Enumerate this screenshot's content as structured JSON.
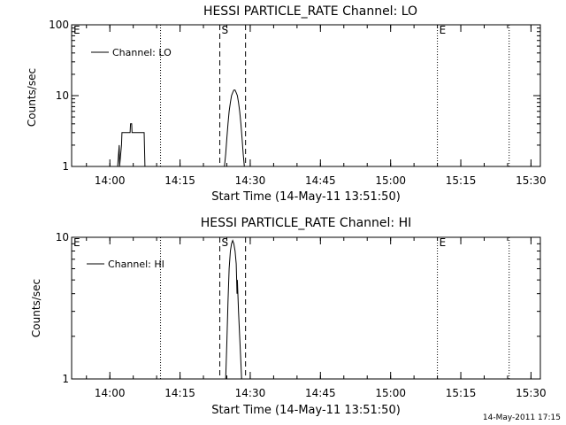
{
  "timestamp": "14-May-2011 17:15",
  "chart_data": [
    {
      "type": "line",
      "title": "HESSI PARTICLE_RATE Channel: LO",
      "xlabel": "Start Time (14-May-11 13:51:50)",
      "ylabel": "Counts/sec",
      "y_scale": "log",
      "ylim": [
        1,
        100
      ],
      "yticks": [
        1,
        10,
        100
      ],
      "ytick_labels": [
        "1",
        "10",
        "100"
      ],
      "xlim": [
        "13:51:50",
        "15:32:00"
      ],
      "xticks": [
        "14:00",
        "14:15",
        "14:30",
        "14:45",
        "15:00",
        "15:15",
        "15:30"
      ],
      "legend": {
        "label": "Channel: LO",
        "position": "top-left"
      },
      "markers": [
        {
          "label": "E",
          "time": "13:51:50",
          "style": "none"
        },
        {
          "label": "",
          "time": "14:10:50",
          "style": "dotted"
        },
        {
          "label": "S",
          "time": "14:23:30",
          "style": "dashed"
        },
        {
          "label": "",
          "time": "14:29:00",
          "style": "dashed"
        },
        {
          "label": "E",
          "time": "15:10:00",
          "style": "dotted"
        },
        {
          "label": "",
          "time": "15:25:20",
          "style": "dotted"
        }
      ],
      "series": [
        {
          "name": "Channel: LO",
          "segments": [
            {
              "x": [
                "14:01:40",
                "14:02:00",
                "14:02:05",
                "14:02:30",
                "14:02:35",
                "14:03:00",
                "14:03:10",
                "14:04:20",
                "14:04:25",
                "14:04:40",
                "14:04:45",
                "14:05:00",
                "14:05:05",
                "14:07:20",
                "14:07:30"
              ],
              "y": [
                1,
                2,
                1,
                2,
                3,
                3,
                3,
                3,
                4,
                4,
                3,
                3,
                3,
                3,
                1
              ]
            },
            {
              "x": [
                "14:24:30",
                "14:24:45",
                "14:25:00",
                "14:25:15",
                "14:25:30",
                "14:25:45",
                "14:26:00",
                "14:26:15",
                "14:26:30",
                "14:26:45",
                "14:27:00",
                "14:27:15",
                "14:27:30",
                "14:27:45",
                "14:28:00",
                "14:28:15",
                "14:28:30",
                "14:28:45"
              ],
              "y": [
                1,
                1.5,
                2.5,
                4,
                6,
                8,
                10,
                11,
                12,
                12,
                11,
                10,
                8,
                6,
                4,
                2.5,
                1.5,
                1
              ]
            }
          ]
        }
      ]
    },
    {
      "type": "line",
      "title": "HESSI PARTICLE_RATE Channel: HI",
      "xlabel": "Start Time (14-May-11 13:51:50)",
      "ylabel": "Counts/sec",
      "y_scale": "log",
      "ylim": [
        1,
        10
      ],
      "yticks": [
        1,
        10
      ],
      "ytick_labels": [
        "1",
        "10"
      ],
      "xlim": [
        "13:51:50",
        "15:32:00"
      ],
      "xticks": [
        "14:00",
        "14:15",
        "14:30",
        "14:45",
        "15:00",
        "15:15",
        "15:30"
      ],
      "legend": {
        "label": "Channel: HI",
        "position": "top-left"
      },
      "markers": [
        {
          "label": "E",
          "time": "13:51:50",
          "style": "none"
        },
        {
          "label": "",
          "time": "14:10:50",
          "style": "dotted"
        },
        {
          "label": "S",
          "time": "14:23:30",
          "style": "dashed"
        },
        {
          "label": "",
          "time": "14:29:00",
          "style": "dashed"
        },
        {
          "label": "E",
          "time": "15:10:00",
          "style": "dotted"
        },
        {
          "label": "",
          "time": "15:25:20",
          "style": "dotted"
        }
      ],
      "series": [
        {
          "name": "Channel: HI",
          "segments": [
            {
              "x": [
                "14:24:45",
                "14:25:00",
                "14:25:15",
                "14:25:30",
                "14:25:45",
                "14:26:00",
                "14:26:15",
                "14:26:30",
                "14:26:45",
                "14:27:00",
                "14:27:10",
                "14:27:15",
                "14:27:25",
                "14:27:30",
                "14:27:45",
                "14:28:00",
                "14:28:10"
              ],
              "y": [
                1,
                1.8,
                3.5,
                6,
                8,
                9,
                9.5,
                9,
                8,
                6.5,
                4,
                5,
                3.5,
                3,
                2,
                1.3,
                1
              ]
            }
          ]
        }
      ]
    }
  ]
}
